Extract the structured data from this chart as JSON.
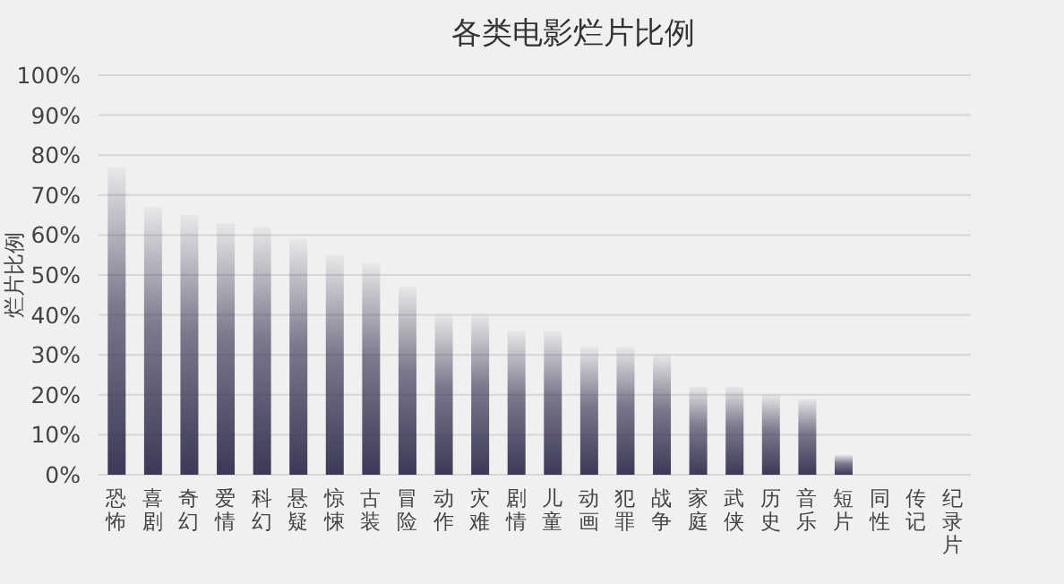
{
  "chart_data": {
    "type": "bar",
    "title": "各类电影烂片比例",
    "ylabel": "烂片比例",
    "categories": [
      "恐怖",
      "喜剧",
      "奇幻",
      "爱情",
      "科幻",
      "悬疑",
      "惊悚",
      "古装",
      "冒险",
      "动作",
      "灾难",
      "剧情",
      "儿童",
      "动画",
      "犯罪",
      "战争",
      "家庭",
      "武侠",
      "历史",
      "音乐",
      "短片",
      "同性",
      "传记",
      "纪录片"
    ],
    "values": [
      77,
      67,
      65,
      63,
      62,
      59,
      55,
      53,
      47,
      40,
      40,
      36,
      36,
      32,
      32,
      30,
      22,
      22,
      20,
      19,
      5,
      0,
      0,
      0
    ],
    "color": "#3b3956",
    "ylim": [
      0,
      100
    ],
    "yticks": [
      {
        "value": 0,
        "label": "0%"
      },
      {
        "value": 10,
        "label": "10%"
      },
      {
        "value": 20,
        "label": "20%"
      },
      {
        "value": 30,
        "label": "30%"
      },
      {
        "value": 40,
        "label": "40%"
      },
      {
        "value": 50,
        "label": "50%"
      },
      {
        "value": 60,
        "label": "60%"
      },
      {
        "value": 70,
        "label": "70%"
      },
      {
        "value": 80,
        "label": "80%"
      },
      {
        "value": 90,
        "label": "90%"
      },
      {
        "value": 100,
        "label": "100%"
      }
    ],
    "grid": "y"
  }
}
